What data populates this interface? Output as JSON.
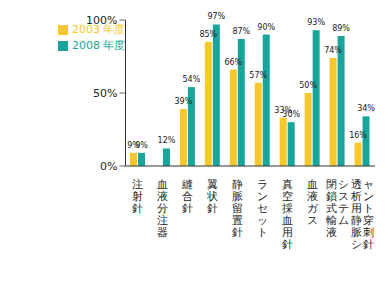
{
  "chart_data": {
    "type": "bar",
    "categories": [
      "注射針",
      "血液分注器",
      "縫合針",
      "翼状針",
      "静脈留置針",
      "ランセット",
      "真空採血用針",
      "血液ガス",
      "閉鎖式輸液システム",
      "透析用静脈シャント穿刺針"
    ],
    "series": [
      {
        "name": "2003 年度",
        "color": "#f7c82a",
        "values": [
          9,
          null,
          39,
          85,
          66,
          57,
          33,
          50,
          74,
          16
        ],
        "value_labels": [
          "9%",
          null,
          "39%",
          "85%",
          "66%",
          "57%",
          "33%",
          "50%",
          "74%",
          "16%"
        ]
      },
      {
        "name": "2008 年度",
        "color": "#17a59c",
        "values": [
          9,
          12,
          54,
          97,
          87,
          90,
          30,
          93,
          89,
          34
        ],
        "value_labels": [
          "9%",
          "12%",
          "54%",
          "97%",
          "87%",
          "90%",
          "30%",
          "93%",
          "89%",
          "34%"
        ]
      }
    ],
    "ylim": [
      0,
      100
    ],
    "yticks": [
      {
        "value": 0,
        "label": "0%"
      },
      {
        "value": 50,
        "label": "50%"
      },
      {
        "value": 100,
        "label": "100%"
      }
    ],
    "data_labels": true,
    "legend": "upper left",
    "grid": false
  }
}
